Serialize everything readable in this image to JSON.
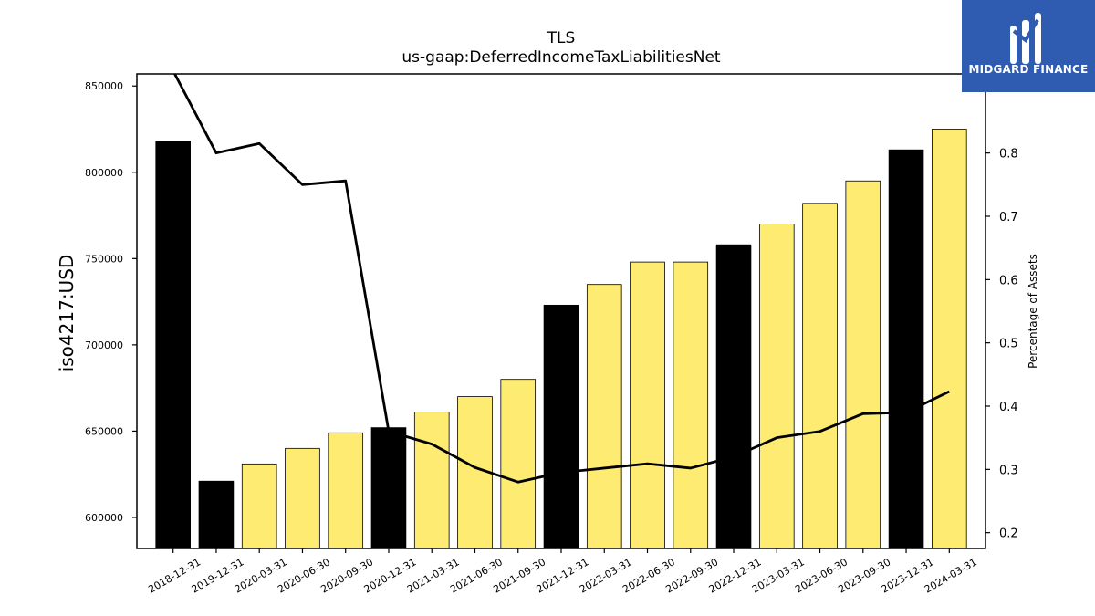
{
  "chart_data": {
    "type": "bar",
    "title": "TLS",
    "subtitle": "us-gaap:DeferredIncomeTaxLiabilitiesNet",
    "ylabel": "iso4217:USD",
    "y2label": "Percentage of Assets",
    "categories": [
      "2018-12-31",
      "2019-12-31",
      "2020-03-31",
      "2020-06-30",
      "2020-09-30",
      "2020-12-31",
      "2021-03-31",
      "2021-06-30",
      "2021-09-30",
      "2021-12-31",
      "2022-03-31",
      "2022-06-30",
      "2022-09-30",
      "2022-12-31",
      "2023-03-31",
      "2023-06-30",
      "2023-09-30",
      "2023-12-31",
      "2024-03-31"
    ],
    "series": [
      {
        "type": "bar",
        "values": [
          818000,
          621000,
          631000,
          640000,
          649000,
          652000,
          661000,
          670000,
          680000,
          723000,
          735000,
          748000,
          748000,
          758000,
          770000,
          782000,
          795000,
          813000,
          825000
        ],
        "annual": [
          true,
          true,
          false,
          false,
          false,
          true,
          false,
          false,
          false,
          true,
          false,
          false,
          false,
          true,
          false,
          false,
          false,
          true,
          false
        ]
      },
      {
        "type": "line",
        "axis": "right",
        "values": [
          0.93,
          0.8,
          0.815,
          0.75,
          0.756,
          0.36,
          0.34,
          0.303,
          0.28,
          0.295,
          0.302,
          0.309,
          0.302,
          0.32,
          0.35,
          0.36,
          0.388,
          0.39,
          0.423
        ]
      }
    ],
    "ylim": [
      582000,
      857000
    ],
    "y2lim": [
      0.175,
      0.925
    ],
    "yticks": [
      600000,
      650000,
      700000,
      750000,
      800000,
      850000
    ],
    "y2ticks": [
      0.2,
      0.3,
      0.4,
      0.5,
      0.6,
      0.7,
      0.8
    ],
    "colors": {
      "annual_bar": "#000000",
      "quarterly_bar": "#fdeb72",
      "bar_edge": "#000000",
      "line": "#000000"
    },
    "grid": false,
    "legend": "none"
  },
  "logo": {
    "text": "MIDGARD FINANCE",
    "bg_color": "#2f5bb0"
  }
}
